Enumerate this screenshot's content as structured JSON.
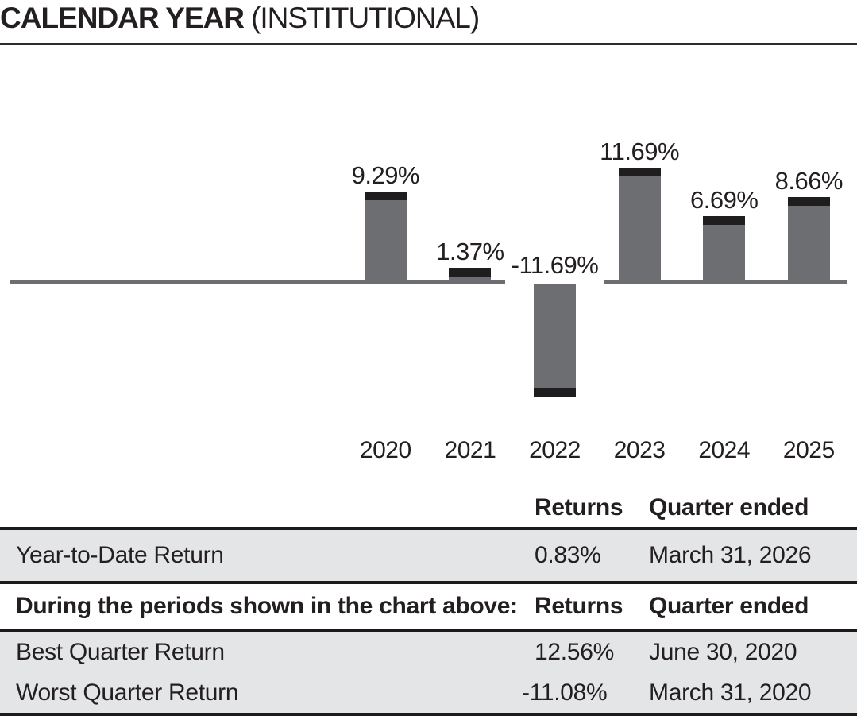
{
  "title": {
    "main": "CALENDAR YEAR",
    "suffix": "(INSTITUTIONAL)"
  },
  "chart_data": {
    "type": "bar",
    "title": "CALENDAR YEAR (INSTITUTIONAL)",
    "categories": [
      "2020",
      "2021",
      "2022",
      "2023",
      "2024",
      "2025"
    ],
    "values": [
      9.29,
      1.37,
      -11.69,
      11.69,
      6.69,
      8.66
    ],
    "labels": [
      "9.29%",
      "1.37%",
      "-11.69%",
      "11.69%",
      "6.69%",
      "8.66%"
    ],
    "xlabel": "",
    "ylabel": "",
    "ylim": [
      -13,
      13
    ],
    "grid": false,
    "legend": null,
    "bar_color": "#6c6e71",
    "cap_color": "#1f1d1e",
    "axis_color": "#6c6e71",
    "label_color": "#231f20"
  },
  "table": {
    "shade_color": "#e4e5e6",
    "rule_color": "#1c1a1b",
    "header": {
      "returns": "Returns",
      "quarter": "Quarter ended"
    },
    "ytd_row": {
      "label": "Year-to-Date Return",
      "returns": "0.83%",
      "quarter": "March 31, 2026"
    },
    "periods_header": {
      "label": "During the periods shown in the chart above:",
      "returns": "Returns",
      "quarter": "Quarter ended"
    },
    "rows": [
      {
        "label": "Best Quarter Return",
        "returns": "12.56%",
        "quarter": "June 30, 2020"
      },
      {
        "label": "Worst Quarter Return",
        "returns": "-11.08%",
        "quarter": "March 31, 2020"
      }
    ]
  }
}
